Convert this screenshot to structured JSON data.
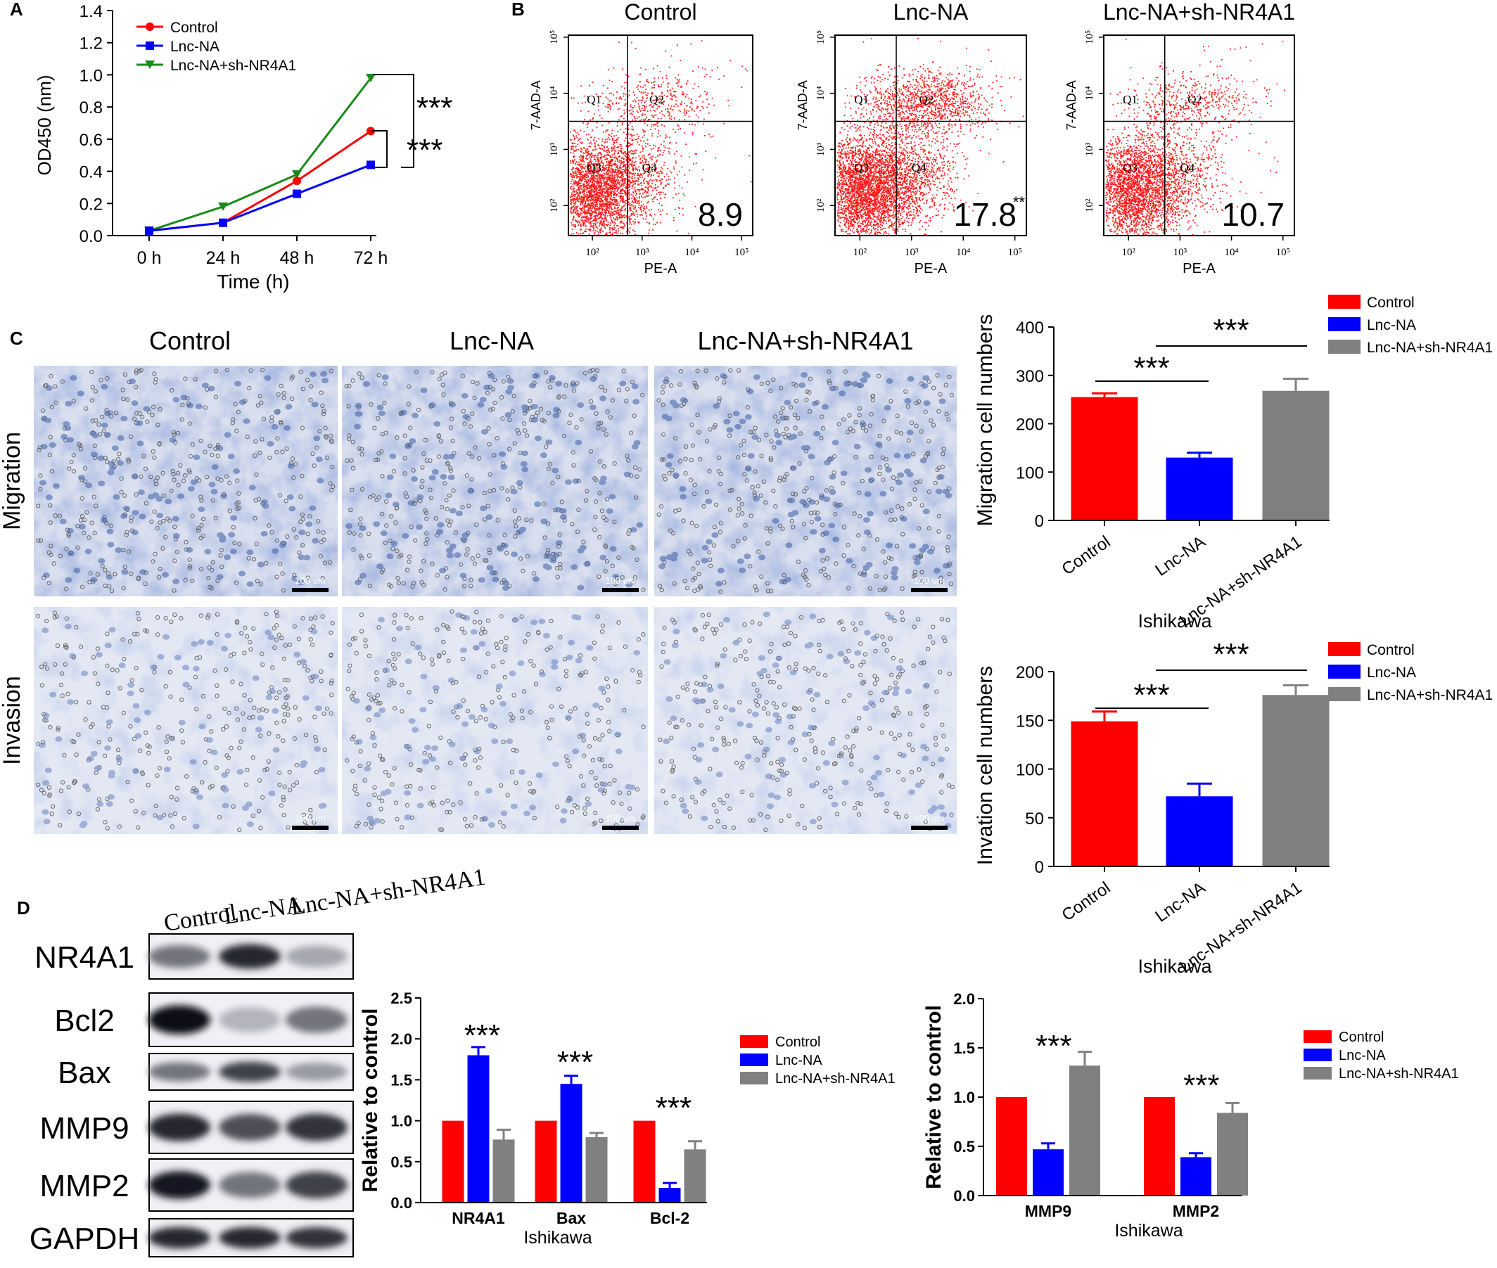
{
  "panel_letters": [
    "A",
    "B",
    "C",
    "D"
  ],
  "colors": {
    "control": "#ff0000",
    "lnc": "#0000ff",
    "sh_gray": "#808080",
    "sh_green": "#1a8a1a",
    "flow": "#ff1a1a",
    "stain": "#6f86bf"
  },
  "panelB": {
    "xlabel": "PE-A",
    "ylabel": "7-AAD-A",
    "xticks": [
      "10²",
      "10³",
      "10⁴",
      "10⁵"
    ],
    "yticks": [
      "10²",
      "10³",
      "10⁴",
      "10⁵"
    ],
    "quadrants": [
      "Q1",
      "Q2",
      "Q3",
      "Q4"
    ],
    "plots": [
      {
        "title": "Control",
        "value": "8.9",
        "mark": ""
      },
      {
        "title": "Lnc-NA",
        "value": "17.8",
        "mark": "**"
      },
      {
        "title": "Lnc-NA+sh-NR4A1",
        "value": "10.7",
        "mark": ""
      }
    ]
  },
  "panelC": {
    "columns": [
      "Control",
      "Lnc-NA",
      "Lnc-NA+sh-NR4A1"
    ],
    "rows": [
      "Migration",
      "Invasion"
    ],
    "scale_bar": "100 um"
  },
  "panelD": {
    "lanes": [
      "Control",
      "Lnc-NA",
      "Lnc-NA+sh-NR4A1"
    ],
    "proteins": [
      "NR4A1",
      "Bcl2",
      "Bax",
      "MMP9",
      "MMP2",
      "GAPDH"
    ],
    "band_intensity": [
      [
        0.55,
        0.85,
        0.35
      ],
      [
        0.95,
        0.3,
        0.55
      ],
      [
        0.55,
        0.75,
        0.4
      ],
      [
        0.85,
        0.7,
        0.8
      ],
      [
        0.9,
        0.55,
        0.75
      ],
      [
        0.85,
        0.85,
        0.8
      ]
    ]
  },
  "chart_data": [
    {
      "type": "line",
      "x": [
        "0 h",
        "24 h",
        "48 h",
        "72 h"
      ],
      "xlabel": "Time (h)",
      "ylabel": "OD450 (nm)",
      "ylim": [
        0,
        1.4
      ],
      "yticks": [
        "0.0",
        "0.2",
        "0.4",
        "0.6",
        "0.8",
        "1.0",
        "1.2",
        "1.4"
      ],
      "series": [
        {
          "name": "Control",
          "values": [
            0.03,
            0.08,
            0.34,
            0.65
          ]
        },
        {
          "name": "Lnc-NA",
          "values": [
            0.03,
            0.08,
            0.26,
            0.44
          ]
        },
        {
          "name": "Lnc-NA+sh-NR4A1",
          "values": [
            0.03,
            0.18,
            0.38,
            0.98
          ]
        }
      ],
      "annotations": [
        "***",
        "***"
      ],
      "legend": "top-left"
    },
    {
      "type": "bar",
      "categories": [
        "Control",
        "Lnc-NA",
        "Lnc-NA+sh-NR4A1"
      ],
      "values": [
        255,
        130,
        268
      ],
      "errors": [
        8,
        10,
        25
      ],
      "ylabel": "Migration cell numbers",
      "xlabel": "Ishikawa",
      "ylim": [
        0,
        400
      ],
      "yticks": [
        "0",
        "100",
        "200",
        "300",
        "400"
      ],
      "legend_entries": [
        "Control",
        "Lnc-NA",
        "Lnc-NA+sh-NR4A1"
      ],
      "annotations": [
        "***",
        "***"
      ],
      "legend": "top-right"
    },
    {
      "type": "bar",
      "categories": [
        "Control",
        "Lnc-NA",
        "Lnc-NA+sh-NR4A1"
      ],
      "values": [
        149,
        72,
        176
      ],
      "errors": [
        10,
        13,
        10
      ],
      "ylabel": "Invation cell numbers",
      "xlabel": "Ishikawa",
      "ylim": [
        0,
        200
      ],
      "yticks": [
        "0",
        "50",
        "100",
        "150",
        "200"
      ],
      "legend_entries": [
        "Control",
        "Lnc-NA",
        "Lnc-NA+sh-NR4A1"
      ],
      "annotations": [
        "***",
        "***"
      ],
      "legend": "top-right"
    },
    {
      "type": "bar",
      "categories": [
        "NR4A1",
        "Bax",
        "Bcl-2"
      ],
      "series": [
        {
          "name": "Control",
          "values": [
            1.0,
            1.0,
            1.0
          ],
          "errors": [
            0,
            0,
            0
          ]
        },
        {
          "name": "Lnc-NA",
          "values": [
            1.8,
            1.45,
            0.18
          ],
          "errors": [
            0.1,
            0.1,
            0.06
          ]
        },
        {
          "name": "Lnc-NA+sh-NR4A1",
          "values": [
            0.77,
            0.8,
            0.65
          ],
          "errors": [
            0.12,
            0.05,
            0.1
          ]
        }
      ],
      "ylabel": "Relative to control",
      "xlabel": "Ishikawa",
      "ylim": [
        0,
        2.5
      ],
      "yticks": [
        "0.0",
        "0.5",
        "1.0",
        "1.5",
        "2.0",
        "2.5"
      ],
      "annotations": [
        "***",
        "***",
        "***"
      ],
      "legend": "right"
    },
    {
      "type": "bar",
      "categories": [
        "MMP9",
        "MMP2"
      ],
      "series": [
        {
          "name": "Control",
          "values": [
            1.0,
            1.0
          ],
          "errors": [
            0,
            0
          ]
        },
        {
          "name": "Lnc-NA",
          "values": [
            0.47,
            0.39
          ],
          "errors": [
            0.06,
            0.04
          ]
        },
        {
          "name": "Lnc-NA+sh-NR4A1",
          "values": [
            1.32,
            0.84
          ],
          "errors": [
            0.14,
            0.1
          ]
        }
      ],
      "ylabel": "Relative to control",
      "xlabel": "Ishikawa",
      "ylim": [
        0,
        2.0
      ],
      "yticks": [
        "0.0",
        "0.5",
        "1.0",
        "1.5",
        "2.0"
      ],
      "annotations": [
        "***",
        "***"
      ],
      "legend": "top-right"
    }
  ]
}
